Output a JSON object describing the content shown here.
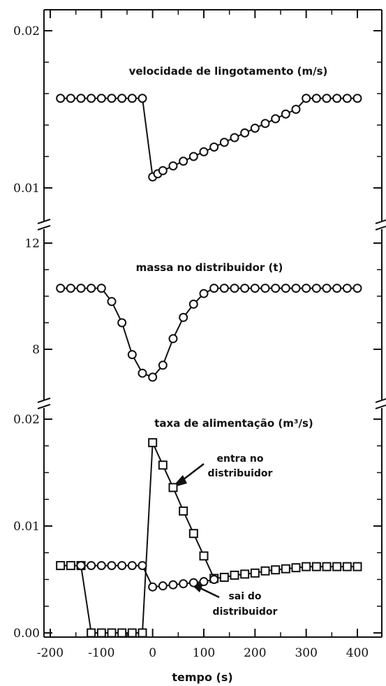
{
  "chart_data": {
    "type": "line",
    "xlabel": "tempo (s)",
    "xlim": [
      -200,
      400
    ],
    "xticks": [
      "-200",
      "-100",
      "0",
      "100",
      "200",
      "300",
      "400"
    ],
    "panels": [
      {
        "id": "speed",
        "title": "velocidade de lingotamento (m/s)",
        "ylim": [
          0.009,
          0.02
        ],
        "yticks": [
          {
            "value": 0.02,
            "label": "0.02"
          },
          {
            "value": 0.01,
            "label": "0.01"
          }
        ],
        "series": [
          {
            "marker": "circle",
            "x": [
              -180,
              -160,
              -140,
              -120,
              -100,
              -80,
              -60,
              -40,
              -20,
              0,
              10,
              20,
              40,
              60,
              80,
              100,
              120,
              140,
              160,
              180,
              200,
              220,
              240,
              260,
              280,
              300,
              320,
              340,
              360,
              380,
              400
            ],
            "y": [
              0.0157,
              0.0157,
              0.0157,
              0.0157,
              0.0157,
              0.0157,
              0.0157,
              0.0157,
              0.0157,
              0.0107,
              0.0109,
              0.0111,
              0.0114,
              0.0117,
              0.012,
              0.0123,
              0.0126,
              0.0129,
              0.0132,
              0.0135,
              0.0138,
              0.0141,
              0.0144,
              0.0147,
              0.015,
              0.0157,
              0.0157,
              0.0157,
              0.0157,
              0.0157,
              0.0157
            ]
          }
        ]
      },
      {
        "id": "mass",
        "title": "massa no distribuidor (t)",
        "ylim": [
          6.8,
          12.8
        ],
        "yticks": [
          {
            "value": 12,
            "label": "12"
          },
          {
            "value": 8,
            "label": "8"
          }
        ],
        "series": [
          {
            "marker": "circle",
            "x": [
              -180,
              -160,
              -140,
              -120,
              -100,
              -80,
              -60,
              -40,
              -20,
              0,
              20,
              40,
              60,
              80,
              100,
              120,
              140,
              160,
              180,
              200,
              220,
              240,
              260,
              280,
              300,
              320,
              340,
              360,
              380,
              400
            ],
            "y": [
              10.3,
              10.3,
              10.3,
              10.3,
              10.3,
              9.8,
              9.0,
              7.8,
              7.1,
              6.95,
              7.4,
              8.4,
              9.2,
              9.7,
              10.1,
              10.3,
              10.3,
              10.3,
              10.3,
              10.3,
              10.3,
              10.3,
              10.3,
              10.3,
              10.3,
              10.3,
              10.3,
              10.3,
              10.3,
              10.3
            ]
          }
        ]
      },
      {
        "id": "feed",
        "title": "taxa de alimentação (m³/s)",
        "ylim": [
          0.0,
          0.021
        ],
        "yticks": [
          {
            "value": 0.02,
            "label": "0.02"
          },
          {
            "value": 0.01,
            "label": "0.01"
          },
          {
            "value": 0.0,
            "label": "0.00"
          }
        ],
        "series": [
          {
            "name": "entra no distribuidor",
            "marker": "square",
            "x": [
              -180,
              -160,
              -140,
              -120,
              -100,
              -80,
              -60,
              -40,
              -20,
              0,
              20,
              40,
              60,
              80,
              100,
              120,
              140,
              160,
              180,
              200,
              220,
              240,
              260,
              280,
              300,
              320,
              340,
              360,
              380,
              400
            ],
            "y": [
              0.0063,
              0.0063,
              0.0063,
              0.0,
              0.0,
              0.0,
              0.0,
              0.0,
              0.0,
              0.0178,
              0.0157,
              0.0136,
              0.0114,
              0.0093,
              0.0072,
              0.0051,
              0.0052,
              0.0054,
              0.0055,
              0.0056,
              0.0058,
              0.0059,
              0.006,
              0.0061,
              0.0062,
              0.0062,
              0.0062,
              0.0062,
              0.0062,
              0.0062
            ]
          },
          {
            "name": "sai do distribuidor",
            "marker": "circle",
            "x": [
              -140,
              -120,
              -100,
              -80,
              -60,
              -40,
              -20,
              0,
              20,
              40,
              60,
              80,
              100,
              120
            ],
            "y": [
              0.0063,
              0.0063,
              0.0063,
              0.0063,
              0.0063,
              0.0063,
              0.0063,
              0.0043,
              0.0044,
              0.0045,
              0.0046,
              0.0047,
              0.0048,
              0.005
            ]
          }
        ]
      }
    ]
  },
  "annotations": {
    "entra_line1": "entra no",
    "entra_line2": "distribuidor",
    "sai_line1": "sai do",
    "sai_line2": "distribuidor"
  }
}
